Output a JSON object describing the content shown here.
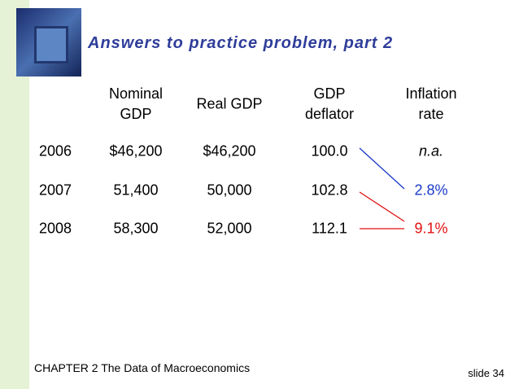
{
  "header": {
    "title": "Answers to practice problem, part 2"
  },
  "table": {
    "columns": [
      "Nominal GDP",
      "Real GDP",
      "GDP deflator",
      "Inflation rate"
    ],
    "rows": [
      [
        "2006",
        "$46,200",
        "$46,200",
        "100.0",
        "n.a."
      ],
      [
        "2007",
        "51,400",
        "50,000",
        "102.8",
        "2.8%"
      ],
      [
        "2008",
        "58,300",
        "52,000",
        "112.1",
        "9.1%"
      ]
    ]
  },
  "footer": {
    "chapter": "CHAPTER 2   The Data of Macroeconomics",
    "slide": "slide 34"
  }
}
